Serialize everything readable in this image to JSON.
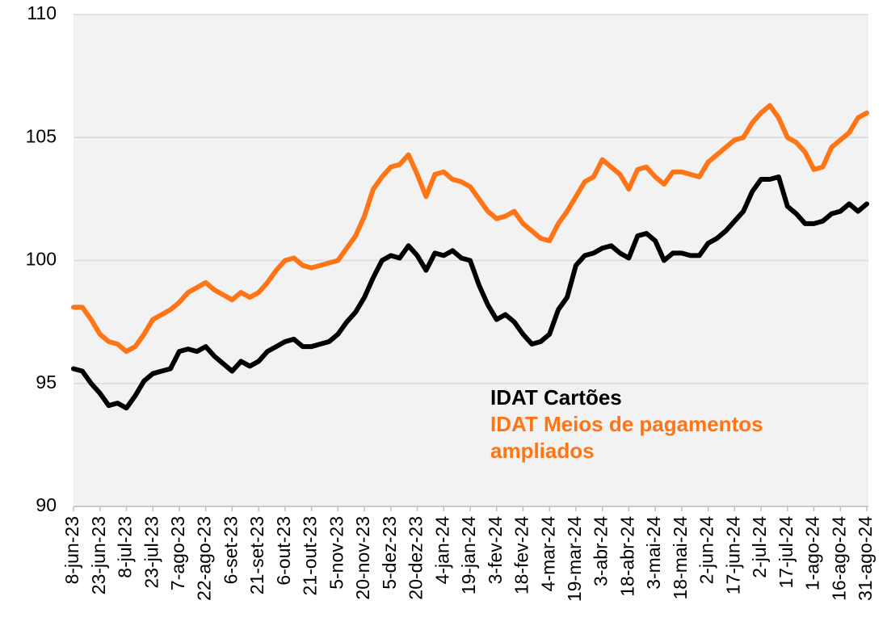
{
  "chart_data": {
    "type": "line",
    "categories": [
      "8-jun-23",
      null,
      null,
      "23-jun-23",
      null,
      null,
      "8-jul-23",
      null,
      null,
      "23-jul-23",
      null,
      null,
      "7-ago-23",
      null,
      null,
      "22-ago-23",
      null,
      null,
      "6-set-23",
      null,
      null,
      "21-set-23",
      null,
      null,
      "6-out-23",
      null,
      null,
      "21-out-23",
      null,
      null,
      "5-nov-23",
      null,
      null,
      "20-nov-23",
      null,
      null,
      "5-dez-23",
      null,
      null,
      "20-dez-23",
      null,
      null,
      "4-jan-24",
      null,
      null,
      "19-jan-24",
      null,
      null,
      "3-fev-24",
      null,
      null,
      "18-fev-24",
      null,
      null,
      "4-mar-24",
      null,
      null,
      "19-mar-24",
      null,
      null,
      "3-abr-24",
      null,
      null,
      "18-abr-24",
      null,
      null,
      "3-mai-24",
      null,
      null,
      "18-mai-24",
      null,
      null,
      "2-jun-24",
      null,
      null,
      "17-jun-24",
      null,
      null,
      "2-jul-24",
      null,
      null,
      "17-jul-24",
      null,
      null,
      "1-ago-24",
      null,
      null,
      "16-ago-24",
      null,
      null,
      "31-ago-24"
    ],
    "series": [
      {
        "name": "IDAT Cartões",
        "color": "#000000",
        "values": [
          95.6,
          95.5,
          95.0,
          94.6,
          94.1,
          94.2,
          94.0,
          94.5,
          95.1,
          95.4,
          95.5,
          95.6,
          96.3,
          96.4,
          96.3,
          96.5,
          96.1,
          95.8,
          95.5,
          95.9,
          95.7,
          95.9,
          96.3,
          96.5,
          96.7,
          96.8,
          96.5,
          96.5,
          96.6,
          96.7,
          97.0,
          97.5,
          97.9,
          98.5,
          99.3,
          100.0,
          100.2,
          100.1,
          100.6,
          100.2,
          99.6,
          100.3,
          100.2,
          100.4,
          100.1,
          100.0,
          99.0,
          98.2,
          97.6,
          97.8,
          97.5,
          97.0,
          96.6,
          96.7,
          97.0,
          98.0,
          98.5,
          99.8,
          100.2,
          100.3,
          100.5,
          100.6,
          100.3,
          100.1,
          101.0,
          101.1,
          100.8,
          100.0,
          100.3,
          100.3,
          100.2,
          100.2,
          100.7,
          100.9,
          101.2,
          101.6,
          102.0,
          102.8,
          103.3,
          103.3,
          103.4,
          102.2,
          101.9,
          101.5,
          101.5,
          101.6,
          101.9,
          102.0,
          102.3,
          102.0,
          102.3
        ]
      },
      {
        "name": "IDAT Meios de pagamentos ampliados",
        "color": "#ff7415",
        "values": [
          98.1,
          98.1,
          97.6,
          97.0,
          96.7,
          96.6,
          96.3,
          96.5,
          97.0,
          97.6,
          97.8,
          98.0,
          98.3,
          98.7,
          98.9,
          99.1,
          98.8,
          98.6,
          98.4,
          98.7,
          98.5,
          98.7,
          99.1,
          99.6,
          100.0,
          100.1,
          99.8,
          99.7,
          99.8,
          99.9,
          100.0,
          100.5,
          101.0,
          101.8,
          102.9,
          103.4,
          103.8,
          103.9,
          104.3,
          103.5,
          102.6,
          103.5,
          103.6,
          103.3,
          103.2,
          103.0,
          102.5,
          102.0,
          101.7,
          101.8,
          102.0,
          101.5,
          101.2,
          100.9,
          100.8,
          101.5,
          102.0,
          102.6,
          103.2,
          103.4,
          104.1,
          103.8,
          103.5,
          102.9,
          103.7,
          103.8,
          103.4,
          103.1,
          103.6,
          103.6,
          103.5,
          103.4,
          104.0,
          104.3,
          104.6,
          104.9,
          105.0,
          105.6,
          106.0,
          106.3,
          105.8,
          105.0,
          104.8,
          104.4,
          103.7,
          103.8,
          104.6,
          104.9,
          105.2,
          105.8,
          106.0
        ]
      }
    ],
    "ylim": [
      90,
      110
    ],
    "yticks": [
      90,
      95,
      100,
      105,
      110
    ],
    "grid": true
  }
}
